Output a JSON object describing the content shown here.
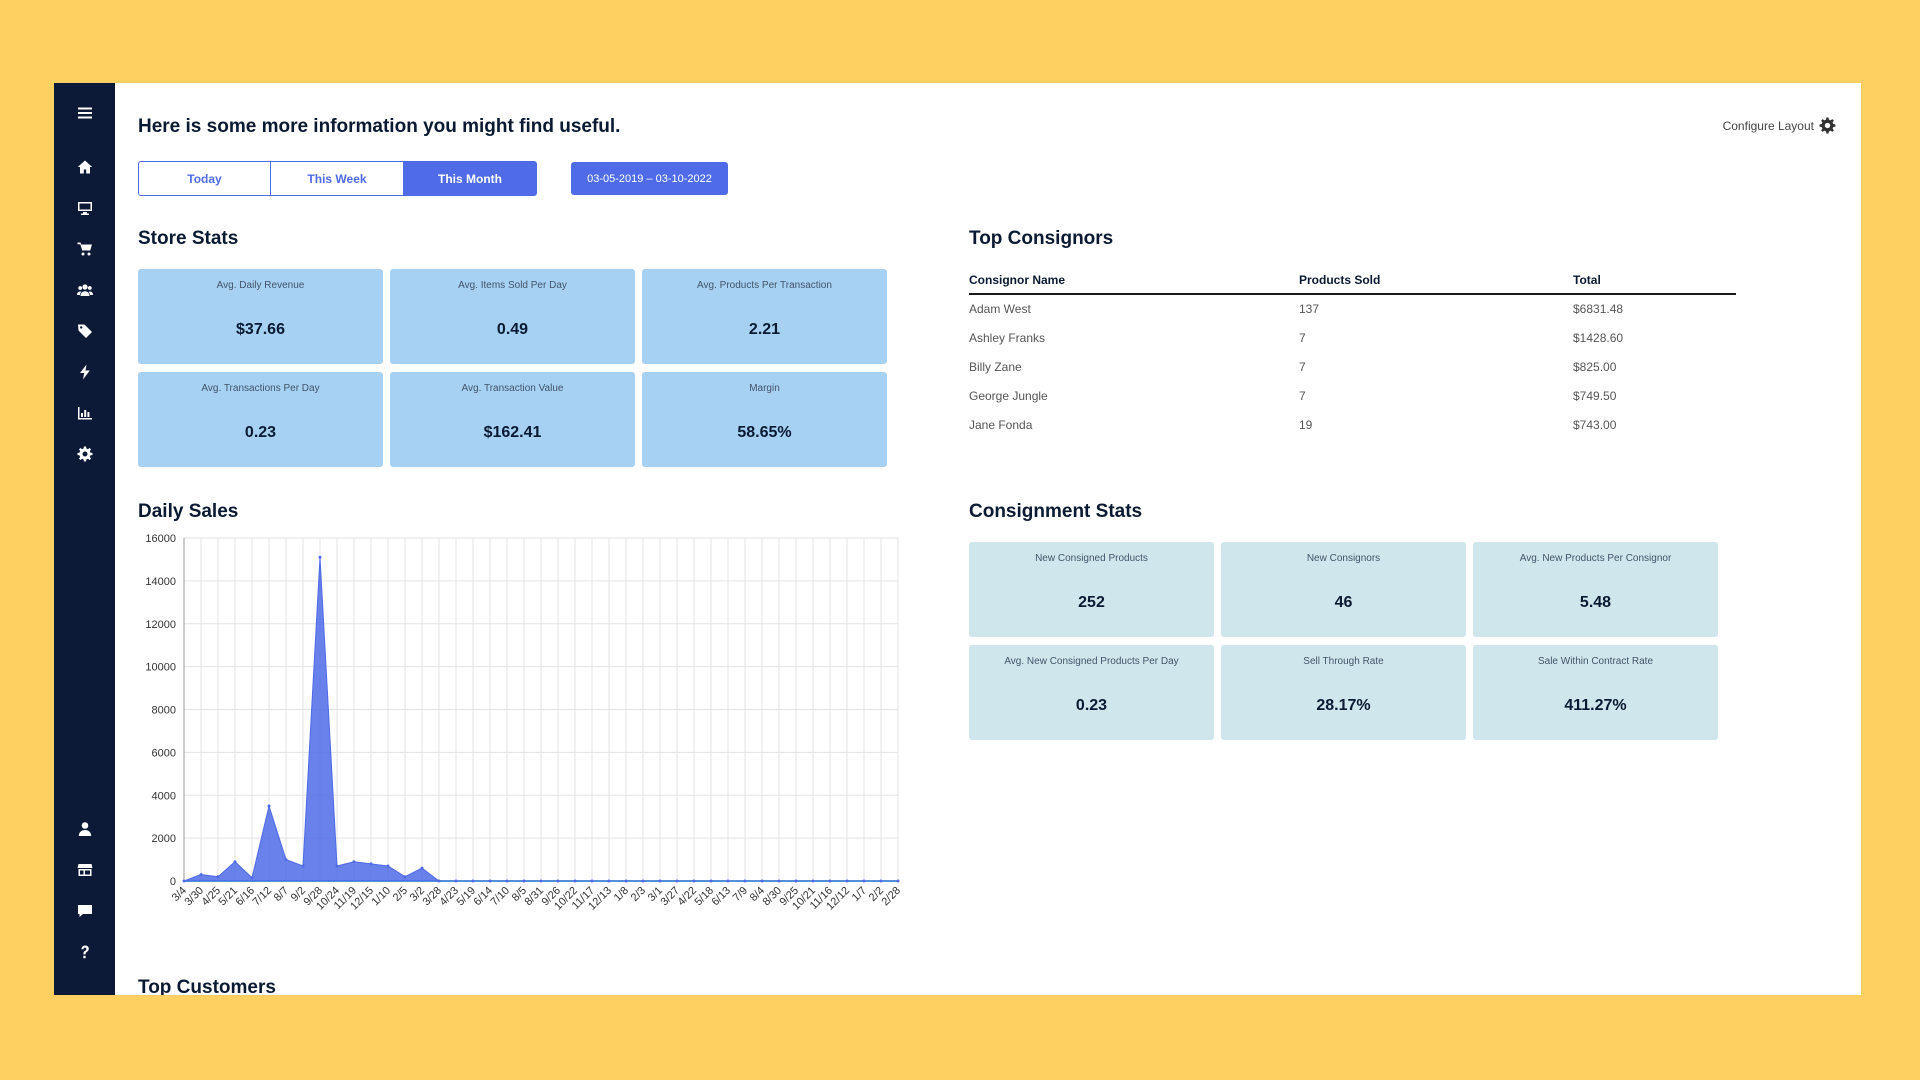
{
  "header": {
    "intro": "Here is some more information you might find useful.",
    "configure_label": "Configure Layout"
  },
  "sidebar": {
    "top_icons": [
      "menu-icon",
      "home-icon",
      "monitor-icon",
      "cart-icon",
      "users-icon",
      "tag-icon",
      "bolt-icon",
      "bar-chart-icon",
      "gear-icon"
    ],
    "bottom_icons": [
      "user-icon",
      "store-icon",
      "chat-icon",
      "help-icon"
    ]
  },
  "range": {
    "buttons": [
      {
        "label": "Today",
        "active": false
      },
      {
        "label": "This Week",
        "active": false
      },
      {
        "label": "This Month",
        "active": true
      }
    ],
    "date_range": "03-05-2019 – 03-10-2022"
  },
  "store_stats": {
    "title": "Store Stats",
    "cards": [
      {
        "label": "Avg. Daily Revenue",
        "value": "$37.66"
      },
      {
        "label": "Avg. Items Sold Per Day",
        "value": "0.49"
      },
      {
        "label": "Avg. Products Per Transaction",
        "value": "2.21"
      },
      {
        "label": "Avg. Transactions Per Day",
        "value": "0.23"
      },
      {
        "label": "Avg. Transaction Value",
        "value": "$162.41"
      },
      {
        "label": "Margin",
        "value": "58.65%"
      }
    ]
  },
  "top_consignors": {
    "title": "Top Consignors",
    "columns": [
      "Consignor Name",
      "Products Sold",
      "Total"
    ],
    "rows": [
      [
        "Adam West",
        "137",
        "$6831.48"
      ],
      [
        "Ashley Franks",
        "7",
        "$1428.60"
      ],
      [
        "Billy Zane",
        "7",
        "$825.00"
      ],
      [
        "George Jungle",
        "7",
        "$749.50"
      ],
      [
        "Jane Fonda",
        "19",
        "$743.00"
      ]
    ]
  },
  "daily_sales": {
    "title": "Daily Sales"
  },
  "consignment_stats": {
    "title": "Consignment Stats",
    "cards": [
      {
        "label": "New Consigned Products",
        "value": "252"
      },
      {
        "label": "New Consignors",
        "value": "46"
      },
      {
        "label": "Avg. New Products Per Consignor",
        "value": "5.48"
      },
      {
        "label": "Avg. New Consigned Products Per Day",
        "value": "0.23"
      },
      {
        "label": "Sell Through Rate",
        "value": "28.17%"
      },
      {
        "label": "Sale Within Contract Rate",
        "value": "411.27%"
      }
    ]
  },
  "top_customers": {
    "title": "Top Customers"
  },
  "chart_data": {
    "type": "area",
    "title": "",
    "xlabel": "",
    "ylabel": "",
    "ylim": [
      0,
      16000
    ],
    "yticks": [
      0,
      2000,
      4000,
      6000,
      8000,
      10000,
      12000,
      14000,
      16000
    ],
    "grid": true,
    "color": "#4f6be8",
    "x": [
      "3/4",
      "3/30",
      "4/25",
      "5/21",
      "6/16",
      "7/12",
      "8/7",
      "9/2",
      "9/28",
      "10/24",
      "11/19",
      "12/15",
      "1/10",
      "2/5",
      "3/2",
      "3/28",
      "4/23",
      "5/19",
      "6/14",
      "7/10",
      "8/5",
      "8/31",
      "9/26",
      "10/22",
      "11/17",
      "12/13",
      "1/8",
      "2/3",
      "3/1",
      "3/27",
      "4/22",
      "5/18",
      "6/13",
      "7/9",
      "8/4",
      "8/30",
      "9/25",
      "10/21",
      "11/16",
      "12/12",
      "1/7",
      "2/2",
      "2/28"
    ],
    "series": [
      {
        "values": [
          0,
          300,
          200,
          900,
          150,
          3500,
          1000,
          700,
          15100,
          700,
          900,
          800,
          700,
          200,
          600,
          0,
          0,
          0,
          0,
          0,
          0,
          0,
          0,
          0,
          0,
          0,
          0,
          0,
          0,
          0,
          0,
          0,
          0,
          0,
          0,
          0,
          0,
          0,
          0,
          0,
          0,
          0,
          0
        ]
      }
    ]
  }
}
